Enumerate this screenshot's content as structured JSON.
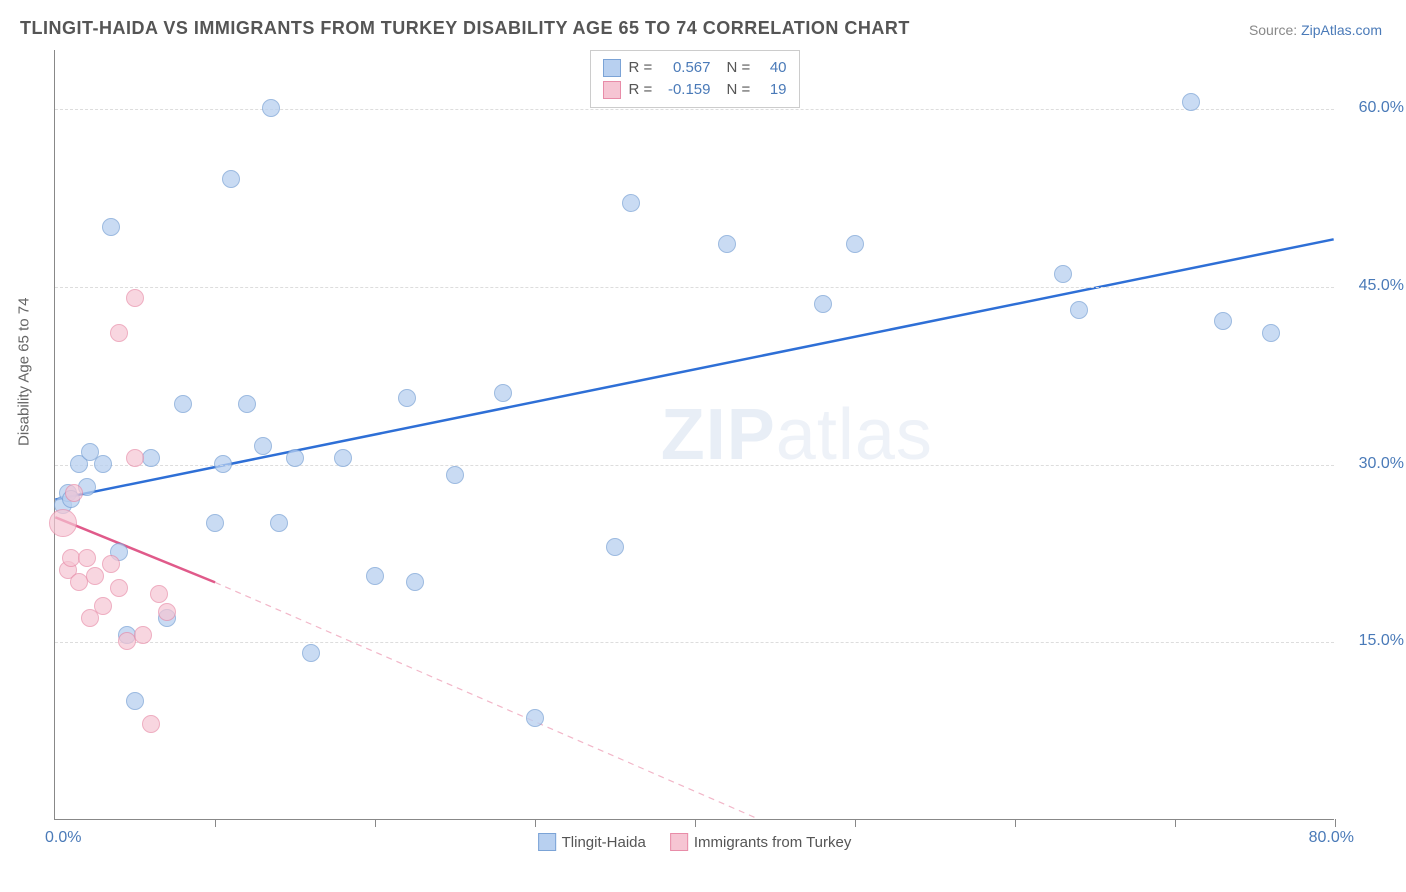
{
  "title": "TLINGIT-HAIDA VS IMMIGRANTS FROM TURKEY DISABILITY AGE 65 TO 74 CORRELATION CHART",
  "source_label": "Source:",
  "source_link_text": "ZipAtlas.com",
  "ylabel": "Disability Age 65 to 74",
  "watermark_a": "ZIP",
  "watermark_b": "atlas",
  "chart": {
    "type": "scatter",
    "xlim": [
      0,
      80
    ],
    "ylim": [
      0,
      65
    ],
    "y_gridlines": [
      15,
      30,
      45,
      60
    ],
    "y_tick_labels": [
      "15.0%",
      "30.0%",
      "45.0%",
      "60.0%"
    ],
    "x_ticks": [
      10,
      20,
      30,
      40,
      50,
      60,
      70,
      80
    ],
    "x_min_label": "0.0%",
    "x_max_label": "80.0%",
    "grid_color": "#dddddd",
    "axis_color": "#888888",
    "background_color": "#ffffff",
    "marker_radius": 9,
    "marker_stroke_width": 1.5,
    "series": [
      {
        "name": "Tlingit-Haida",
        "fill_color": "#b8d0f0",
        "stroke_color": "#7ba3d6",
        "opacity": 0.75,
        "r_value": "0.567",
        "n_value": "40",
        "trend": {
          "x1": 0,
          "y1": 27,
          "x2": 80,
          "y2": 49,
          "stroke": "#2e6fd6",
          "width": 2.5,
          "dash": "none"
        },
        "points": [
          {
            "x": 0.5,
            "y": 26.5
          },
          {
            "x": 0.8,
            "y": 27.5
          },
          {
            "x": 1.0,
            "y": 27.0
          },
          {
            "x": 1.5,
            "y": 30.0
          },
          {
            "x": 2.0,
            "y": 28.0
          },
          {
            "x": 2.2,
            "y": 31.0
          },
          {
            "x": 3.0,
            "y": 30.0
          },
          {
            "x": 3.5,
            "y": 50.0
          },
          {
            "x": 4.0,
            "y": 22.5
          },
          {
            "x": 4.5,
            "y": 15.5
          },
          {
            "x": 5.0,
            "y": 10.0
          },
          {
            "x": 6.0,
            "y": 30.5
          },
          {
            "x": 7.0,
            "y": 17.0
          },
          {
            "x": 8.0,
            "y": 35.0
          },
          {
            "x": 10.0,
            "y": 25.0
          },
          {
            "x": 10.5,
            "y": 30.0
          },
          {
            "x": 11.0,
            "y": 54.0
          },
          {
            "x": 12.0,
            "y": 35.0
          },
          {
            "x": 13.0,
            "y": 31.5
          },
          {
            "x": 13.5,
            "y": 60.0
          },
          {
            "x": 14.0,
            "y": 25.0
          },
          {
            "x": 15.0,
            "y": 30.5
          },
          {
            "x": 16.0,
            "y": 14.0
          },
          {
            "x": 18.0,
            "y": 30.5
          },
          {
            "x": 20.0,
            "y": 20.5
          },
          {
            "x": 22.0,
            "y": 35.5
          },
          {
            "x": 22.5,
            "y": 20.0
          },
          {
            "x": 25.0,
            "y": 29.0
          },
          {
            "x": 28.0,
            "y": 36.0
          },
          {
            "x": 30.0,
            "y": 8.5
          },
          {
            "x": 35.0,
            "y": 23.0
          },
          {
            "x": 36.0,
            "y": 52.0
          },
          {
            "x": 42.0,
            "y": 48.5
          },
          {
            "x": 48.0,
            "y": 43.5
          },
          {
            "x": 50.0,
            "y": 48.5
          },
          {
            "x": 63.0,
            "y": 46.0
          },
          {
            "x": 64.0,
            "y": 43.0
          },
          {
            "x": 71.0,
            "y": 60.5
          },
          {
            "x": 73.0,
            "y": 42.0
          },
          {
            "x": 76.0,
            "y": 41.0
          }
        ]
      },
      {
        "name": "Immigrants from Turkey",
        "fill_color": "#f6c5d3",
        "stroke_color": "#e88ca8",
        "opacity": 0.7,
        "r_value": "-0.159",
        "n_value": "19",
        "trend_solid": {
          "x1": 0,
          "y1": 25.5,
          "x2": 10,
          "y2": 20,
          "stroke": "#e05a8a",
          "width": 2.5
        },
        "trend_dash": {
          "x1": 10,
          "y1": 20,
          "x2": 44,
          "y2": 0,
          "stroke": "#f2b6c8",
          "width": 1.2,
          "dash": "6,5"
        },
        "points": [
          {
            "x": 0.5,
            "y": 25.0,
            "r": 14
          },
          {
            "x": 0.8,
            "y": 21.0
          },
          {
            "x": 1.0,
            "y": 22.0
          },
          {
            "x": 1.2,
            "y": 27.5
          },
          {
            "x": 1.5,
            "y": 20.0
          },
          {
            "x": 2.0,
            "y": 22.0
          },
          {
            "x": 2.2,
            "y": 17.0
          },
          {
            "x": 2.5,
            "y": 20.5
          },
          {
            "x": 3.0,
            "y": 18.0
          },
          {
            "x": 3.5,
            "y": 21.5
          },
          {
            "x": 4.0,
            "y": 41.0
          },
          {
            "x": 4.0,
            "y": 19.5
          },
          {
            "x": 4.5,
            "y": 15.0
          },
          {
            "x": 5.0,
            "y": 30.5
          },
          {
            "x": 5.0,
            "y": 44.0
          },
          {
            "x": 5.5,
            "y": 15.5
          },
          {
            "x": 6.0,
            "y": 8.0
          },
          {
            "x": 6.5,
            "y": 19.0
          },
          {
            "x": 7.0,
            "y": 17.5
          }
        ]
      }
    ],
    "legend_top": {
      "r_label": "R =",
      "n_label": "N ="
    },
    "legend_bottom": [
      {
        "label": "Tlingit-Haida",
        "fill": "#b8d0f0",
        "stroke": "#7ba3d6"
      },
      {
        "label": "Immigrants from Turkey",
        "fill": "#f6c5d3",
        "stroke": "#e88ca8"
      }
    ]
  }
}
